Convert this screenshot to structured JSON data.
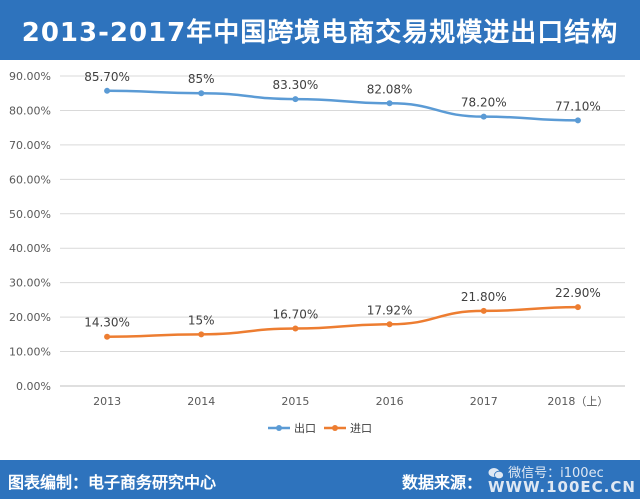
{
  "title": "2013-2017年中国跨境电商交易规模进出口结构",
  "footer": {
    "left": "图表编制：电子商务研究中心",
    "right": "数据来源：",
    "watermark_account": "微信号：i100ec",
    "watermark_site": "WWW.100EC.CN"
  },
  "colors": {
    "header_bg": "#2e73bd",
    "export_line": "#5b9bd5",
    "import_line": "#ed7d31"
  },
  "chart_data": {
    "type": "line",
    "categories": [
      "2013",
      "2014",
      "2015",
      "2016",
      "2017",
      "2018（上）"
    ],
    "series": [
      {
        "name": "出口",
        "values": [
          85.7,
          85.0,
          83.3,
          82.08,
          78.2,
          77.1
        ],
        "labels": [
          "85.70%",
          "85%",
          "83.30%",
          "82.08%",
          "78.20%",
          "77.10%"
        ],
        "color": "#5b9bd5"
      },
      {
        "name": "进口",
        "values": [
          14.3,
          15.0,
          16.7,
          17.92,
          21.8,
          22.9
        ],
        "labels": [
          "14.30%",
          "15%",
          "16.70%",
          "17.92%",
          "21.80%",
          "22.90%"
        ],
        "color": "#ed7d31"
      }
    ],
    "ylim": [
      0,
      90
    ],
    "yticks": [
      "0.00%",
      "10.00%",
      "20.00%",
      "30.00%",
      "40.00%",
      "50.00%",
      "60.00%",
      "70.00%",
      "80.00%",
      "90.00%"
    ],
    "grid": true,
    "legend_position": "bottom"
  }
}
